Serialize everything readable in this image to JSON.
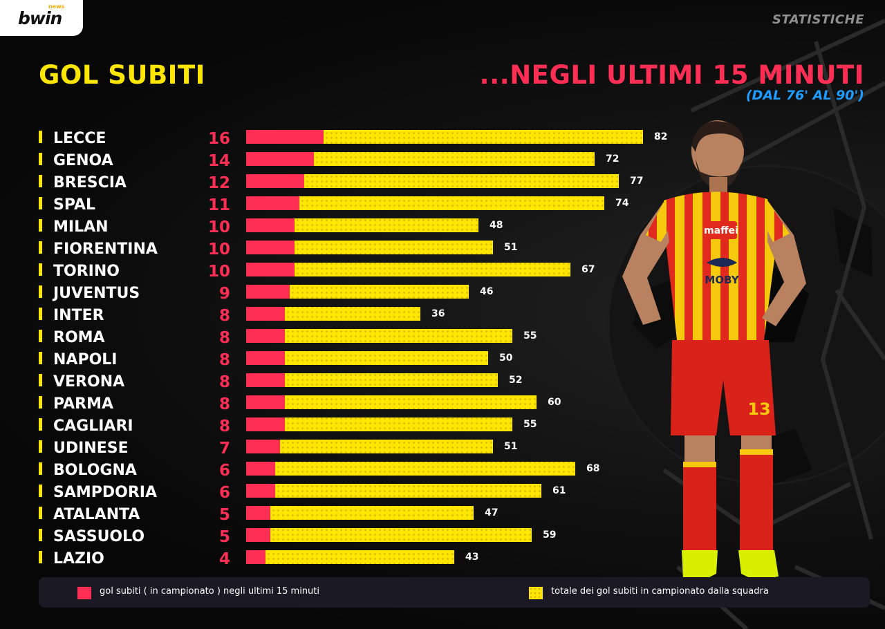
{
  "header": {
    "brand": "bwin",
    "brand_sub": "news",
    "section": "STATISTICHE"
  },
  "titles": {
    "left": "GOL SUBITI",
    "right": "...NEGLI ULTIMI 15 MINUTI",
    "right_sub": "(DAL 76' AL 90')"
  },
  "colors": {
    "accent_yellow": "#ffe600",
    "accent_red": "#ff2e55",
    "accent_blue": "#1f9cff",
    "background": "#0a0a0a"
  },
  "chart_data": {
    "type": "bar",
    "orientation": "horizontal",
    "categories": [
      "LECCE",
      "GENOA",
      "BRESCIA",
      "SPAL",
      "MILAN",
      "FIORENTINA",
      "TORINO",
      "JUVENTUS",
      "INTER",
      "ROMA",
      "NAPOLI",
      "VERONA",
      "PARMA",
      "CAGLIARI",
      "UDINESE",
      "BOLOGNA",
      "SAMPDORIA",
      "ATALANTA",
      "SASSUOLO",
      "LAZIO"
    ],
    "series": [
      {
        "name": "gol subiti ( in campionato ) negli ultimi 15 minuti",
        "color": "#ff2e55",
        "values": [
          16,
          14,
          12,
          11,
          10,
          10,
          10,
          9,
          8,
          8,
          8,
          8,
          8,
          8,
          7,
          6,
          6,
          5,
          5,
          4
        ]
      },
      {
        "name": "totale dei gol subiti in campionato dalla squadra",
        "color": "#ffe600",
        "values": [
          82,
          72,
          77,
          74,
          48,
          51,
          67,
          46,
          36,
          55,
          50,
          52,
          60,
          55,
          51,
          68,
          61,
          47,
          59,
          43
        ]
      }
    ],
    "overlay": true,
    "grid": false,
    "legend": "bottom"
  },
  "legend": {
    "red_label": "gol subiti ( in campionato ) negli ultimi 15 minuti",
    "yellow_label": "totale dei gol subiti in campionato dalla squadra"
  },
  "player": {
    "sponsors": [
      "maffei",
      "MOBY"
    ],
    "shirt_number": "13"
  }
}
